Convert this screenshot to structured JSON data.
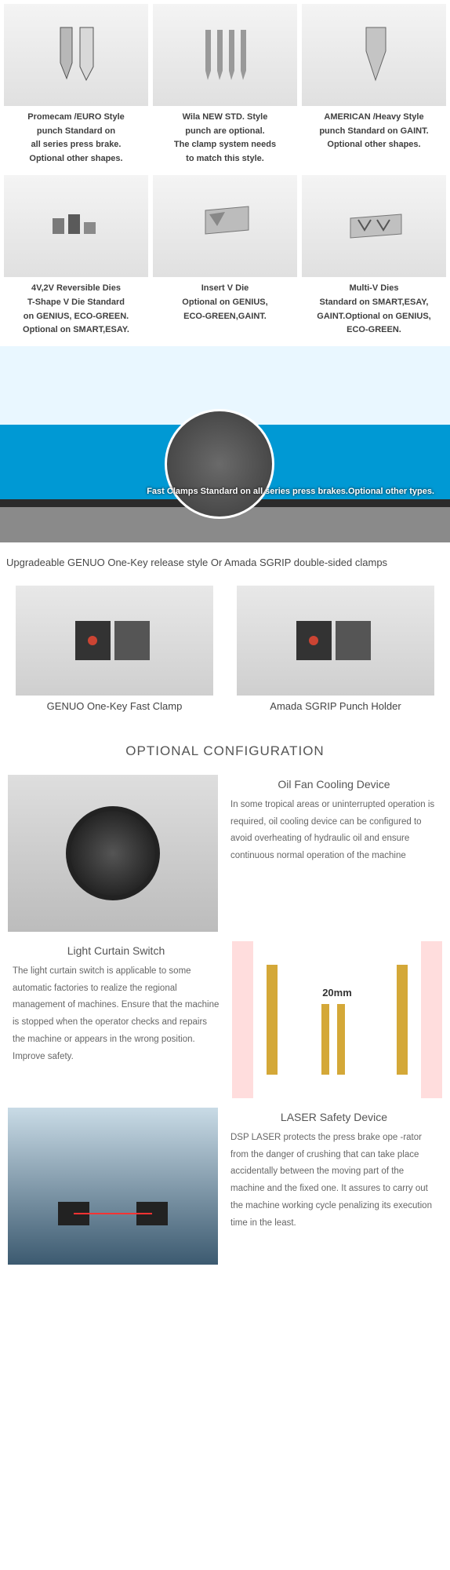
{
  "top_grid": [
    {
      "svg": "punch1",
      "text": "Promecam /EURO Style\npunch Standard on\nall series press brake.\nOptional other shapes."
    },
    {
      "svg": "punch2",
      "text": "Wila NEW STD. Style\npunch are optional.\nThe clamp system needs\nto match this style."
    },
    {
      "svg": "punch3",
      "text": "AMERICAN /Heavy Style\npunch Standard on GAINT.\nOptional other shapes."
    },
    {
      "svg": "die1",
      "text": "4V,2V Reversible Dies\nT-Shape V Die Standard\non GENIUS, ECO-GREEN.\nOptional on SMART,ESAY."
    },
    {
      "svg": "die2",
      "text": "Insert V Die\nOptional on GENIUS,\nECO-GREEN,GAINT."
    },
    {
      "svg": "die3",
      "text": "Multi-V Dies\nStandard on SMART,ESAY,\nGAINT.Optional on GENIUS,\nECO-GREEN."
    }
  ],
  "banner_text": "Fast Clamps Standard on all series\npress brakes.Optional other types.",
  "upgrade_text": "Upgradeable GENUO One-Key release style Or Amada SGRIP double-sided clamps",
  "clamps": [
    {
      "caption": "GENUO One-Key Fast Clamp"
    },
    {
      "caption": "Amada SGRIP Punch Holder"
    }
  ],
  "section_header": "OPTIONAL CONFIGURATION",
  "features": [
    {
      "title": "Oil Fan Cooling Device",
      "desc": "In some tropical areas or uninterrupted operation is required, oil cooling device can be configured to avoid overheating of hydraulic oil and ensure continuous normal operation of the machine",
      "img": "fan",
      "rev": false
    },
    {
      "title": "Light Curtain Switch",
      "desc": "The light curtain switch is applicable to some automatic factories to realize the regional management of machines. Ensure that the machine is stopped when the operator checks and repairs the machine or appears in the wrong position. Improve safety.",
      "img": "curtain",
      "rev": true,
      "badge": "20mm"
    },
    {
      "title": "LASER Safety Device",
      "desc": "DSP LASER protects the press brake ope -rator from the danger of crushing that can take place accidentally between the moving part of the machine and the fixed one. It assures to carry out the machine working cycle penalizing its execution time in the least.",
      "img": "laser",
      "rev": false
    }
  ]
}
